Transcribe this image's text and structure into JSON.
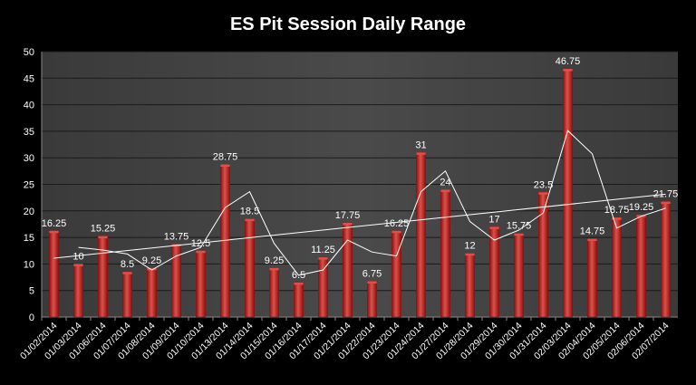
{
  "chart_data": {
    "type": "bar",
    "title": "ES Pit Session Daily Range",
    "xlabel": "",
    "ylabel": "",
    "ylim": [
      0,
      50
    ],
    "yticks": [
      0,
      5,
      10,
      15,
      20,
      25,
      30,
      35,
      40,
      45,
      50
    ],
    "grid": true,
    "legend": "none",
    "categories": [
      "01/02/2014",
      "01/03/2014",
      "01/06/2014",
      "01/07/2014",
      "01/08/2014",
      "01/09/2014",
      "01/10/2014",
      "01/13/2014",
      "01/14/2014",
      "01/15/2014",
      "01/16/2014",
      "01/17/2014",
      "01/21/2014",
      "01/22/2014",
      "01/23/2014",
      "01/24/2014",
      "01/27/2014",
      "01/28/2014",
      "01/29/2014",
      "01/30/2014",
      "01/31/2014",
      "02/03/2014",
      "02/04/2014",
      "02/05/2014",
      "02/06/2014",
      "02/07/2014"
    ],
    "values": [
      16.25,
      10,
      15.25,
      8.5,
      9.25,
      13.75,
      12.5,
      28.75,
      18.5,
      9.25,
      6.5,
      11.25,
      17.75,
      6.75,
      16.25,
      31,
      24,
      12,
      17,
      15.75,
      23.5,
      46.75,
      14.75,
      18.75,
      19.25,
      21.75
    ],
    "data_labels": [
      "16.25",
      "10",
      "15.25",
      "8.5",
      "9.25",
      "13.75",
      "12.5",
      "28.75",
      "18.5",
      "9.25",
      "6.5",
      "11.25",
      "17.75",
      "6.75",
      "16.25",
      "31",
      "24",
      "12",
      "17",
      "15.75",
      "23.5",
      "46.75",
      "14.75",
      "18.75",
      "19.25",
      "21.75"
    ],
    "overlays": [
      {
        "type": "moving_average",
        "period": 2,
        "color": "#ffffff"
      },
      {
        "type": "linear_trendline",
        "color": "#ffffff"
      }
    ],
    "colors": {
      "bar": "#c0211f",
      "bar_light": "#e0504a",
      "bar_dark": "#8a1210",
      "plot_bg": "#3a3a3a",
      "plot_bg_light": "#4a4a4a",
      "grid": "#1a1a1a",
      "text": "#ffffff"
    }
  }
}
